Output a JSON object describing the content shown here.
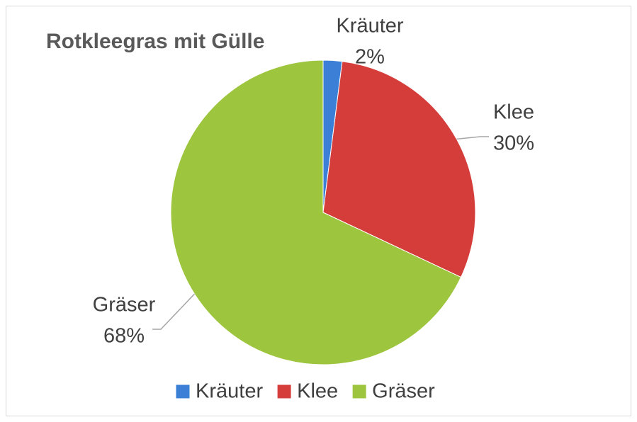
{
  "chart_data": {
    "type": "pie",
    "title": "Rotkleegras mit Gülle",
    "categories": [
      "Kräuter",
      "Klee",
      "Gräser"
    ],
    "values": [
      2,
      30,
      68
    ],
    "value_labels": [
      "2%",
      "30%",
      "68%"
    ],
    "colors": [
      "#3b7fd6",
      "#d53d3b",
      "#9dc53e"
    ],
    "legend": "bottom"
  }
}
